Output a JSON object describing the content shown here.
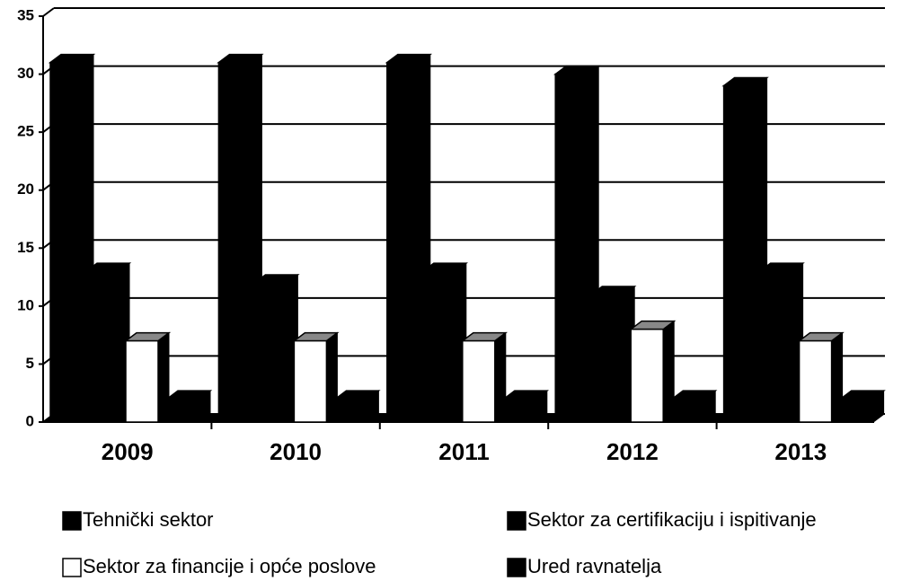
{
  "chart_data": {
    "type": "bar3d",
    "categories": [
      "2009",
      "2010",
      "2011",
      "2012",
      "2013"
    ],
    "series": [
      {
        "name": "Tehnički sektor",
        "color": "#000000",
        "values": [
          31,
          31,
          31,
          30,
          29
        ]
      },
      {
        "name": "Sektor za certifikaciju i ispitivanje",
        "color": "#000000",
        "values": [
          13,
          12,
          13,
          11,
          13
        ]
      },
      {
        "name": "Sektor za financije i opće poslove",
        "color": "#ffffff",
        "values": [
          7,
          7,
          7,
          8,
          7
        ]
      },
      {
        "name": "Ured ravnatelja",
        "color": "#000000",
        "values": [
          2,
          2,
          2,
          2,
          2
        ]
      }
    ],
    "ylim": [
      0,
      35
    ],
    "yticks": [
      0,
      5,
      10,
      15,
      20,
      25,
      30,
      35
    ],
    "grid": true
  }
}
